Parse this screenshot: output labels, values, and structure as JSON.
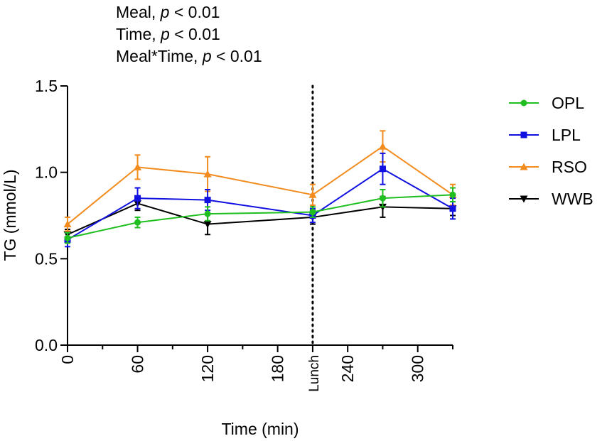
{
  "annotations": [
    {
      "prefix": "Meal, ",
      "p": "p",
      "suffix": " < 0.01"
    },
    {
      "prefix": "Time, ",
      "p": "p",
      "suffix": " < 0.01"
    },
    {
      "prefix": "Meal*Time, ",
      "p": "p",
      "suffix": " < 0.01"
    }
  ],
  "chart_data": {
    "type": "line",
    "title": "",
    "xlabel": "Time (min)",
    "ylabel": "TG (mmol/L)",
    "xlim": [
      0,
      330
    ],
    "ylim": [
      0,
      1.5
    ],
    "x_ticks": [
      {
        "value": 0,
        "label": "0"
      },
      {
        "value": 60,
        "label": "60"
      },
      {
        "value": 120,
        "label": "120"
      },
      {
        "value": 180,
        "label": "180"
      },
      {
        "value": 210,
        "label": "Lunch"
      },
      {
        "value": 240,
        "label": "240"
      },
      {
        "value": 300,
        "label": "300"
      }
    ],
    "x_minor_ticks": [
      30,
      90,
      150,
      270,
      330
    ],
    "y_ticks": [
      {
        "value": 0,
        "label": "0.0"
      },
      {
        "value": 0.5,
        "label": "0.5"
      },
      {
        "value": 1.0,
        "label": "1.0"
      },
      {
        "value": 1.5,
        "label": "1.5"
      }
    ],
    "reference_line": {
      "x": 210,
      "style": "dotted",
      "label": "Lunch"
    },
    "legend_position": "right",
    "series": [
      {
        "name": "OPL",
        "color": "#1fbf1f",
        "marker": "circle",
        "x": [
          0,
          60,
          120,
          210,
          270,
          330
        ],
        "values": [
          0.62,
          0.71,
          0.76,
          0.77,
          0.85,
          0.87
        ],
        "error": [
          0.03,
          0.03,
          0.04,
          0.03,
          0.05,
          0.04
        ]
      },
      {
        "name": "LPL",
        "color": "#1010e0",
        "marker": "square",
        "x": [
          0,
          60,
          120,
          210,
          270,
          330
        ],
        "values": [
          0.61,
          0.85,
          0.84,
          0.75,
          1.02,
          0.79
        ],
        "error": [
          0.04,
          0.06,
          0.06,
          0.04,
          0.09,
          0.06
        ]
      },
      {
        "name": "RSO",
        "color": "#f28c1e",
        "marker": "triangle-up",
        "x": [
          0,
          60,
          120,
          210,
          270,
          330
        ],
        "values": [
          0.7,
          1.03,
          0.99,
          0.87,
          1.15,
          0.87
        ],
        "error": [
          0.04,
          0.07,
          0.1,
          0.06,
          0.09,
          0.06
        ]
      },
      {
        "name": "WWB",
        "color": "#000000",
        "marker": "triangle-down",
        "x": [
          0,
          60,
          120,
          210,
          270,
          330
        ],
        "values": [
          0.64,
          0.82,
          0.7,
          0.74,
          0.8,
          0.79
        ],
        "error": [
          0.03,
          0.04,
          0.06,
          0.04,
          0.06,
          0.04
        ]
      }
    ]
  }
}
